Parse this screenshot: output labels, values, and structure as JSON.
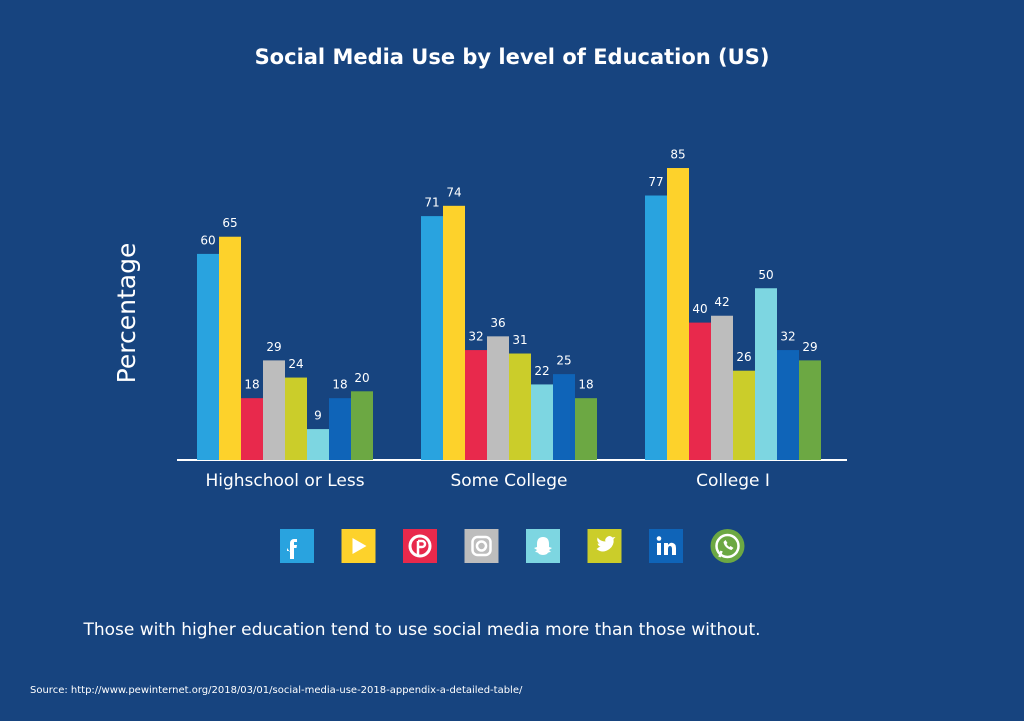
{
  "chart_data": {
    "type": "bar",
    "title": "Social Media Use by level of Education (US)",
    "y_label": "Percentage",
    "categories": [
      "Highschool or Less",
      "Some College",
      "College I"
    ],
    "series": [
      {
        "color": "#29a3df",
        "values": [
          60,
          71,
          77
        ]
      },
      {
        "color": "#fdd22b",
        "values": [
          65,
          74,
          85
        ]
      },
      {
        "color": "#e8294c",
        "values": [
          18,
          32,
          40
        ]
      },
      {
        "color": "#bdbdbd",
        "values": [
          29,
          36,
          42
        ]
      },
      {
        "color": "#cbcd2a",
        "values": [
          24,
          31,
          26
        ]
      },
      {
        "color": "#7dd6e1",
        "values": [
          9,
          22,
          50
        ]
      },
      {
        "color": "#0f64b8",
        "values": [
          18,
          25,
          32
        ]
      },
      {
        "color": "#6ca843",
        "values": [
          20,
          18,
          29
        ]
      }
    ],
    "ylim": [
      0,
      100
    ],
    "note": "Those with higher education tend to use social media more than those without.",
    "source": "Source: http://www.pewinternet.org/2018/03/01/social-media-use-2018-appendix-a-detailed-table/"
  }
}
